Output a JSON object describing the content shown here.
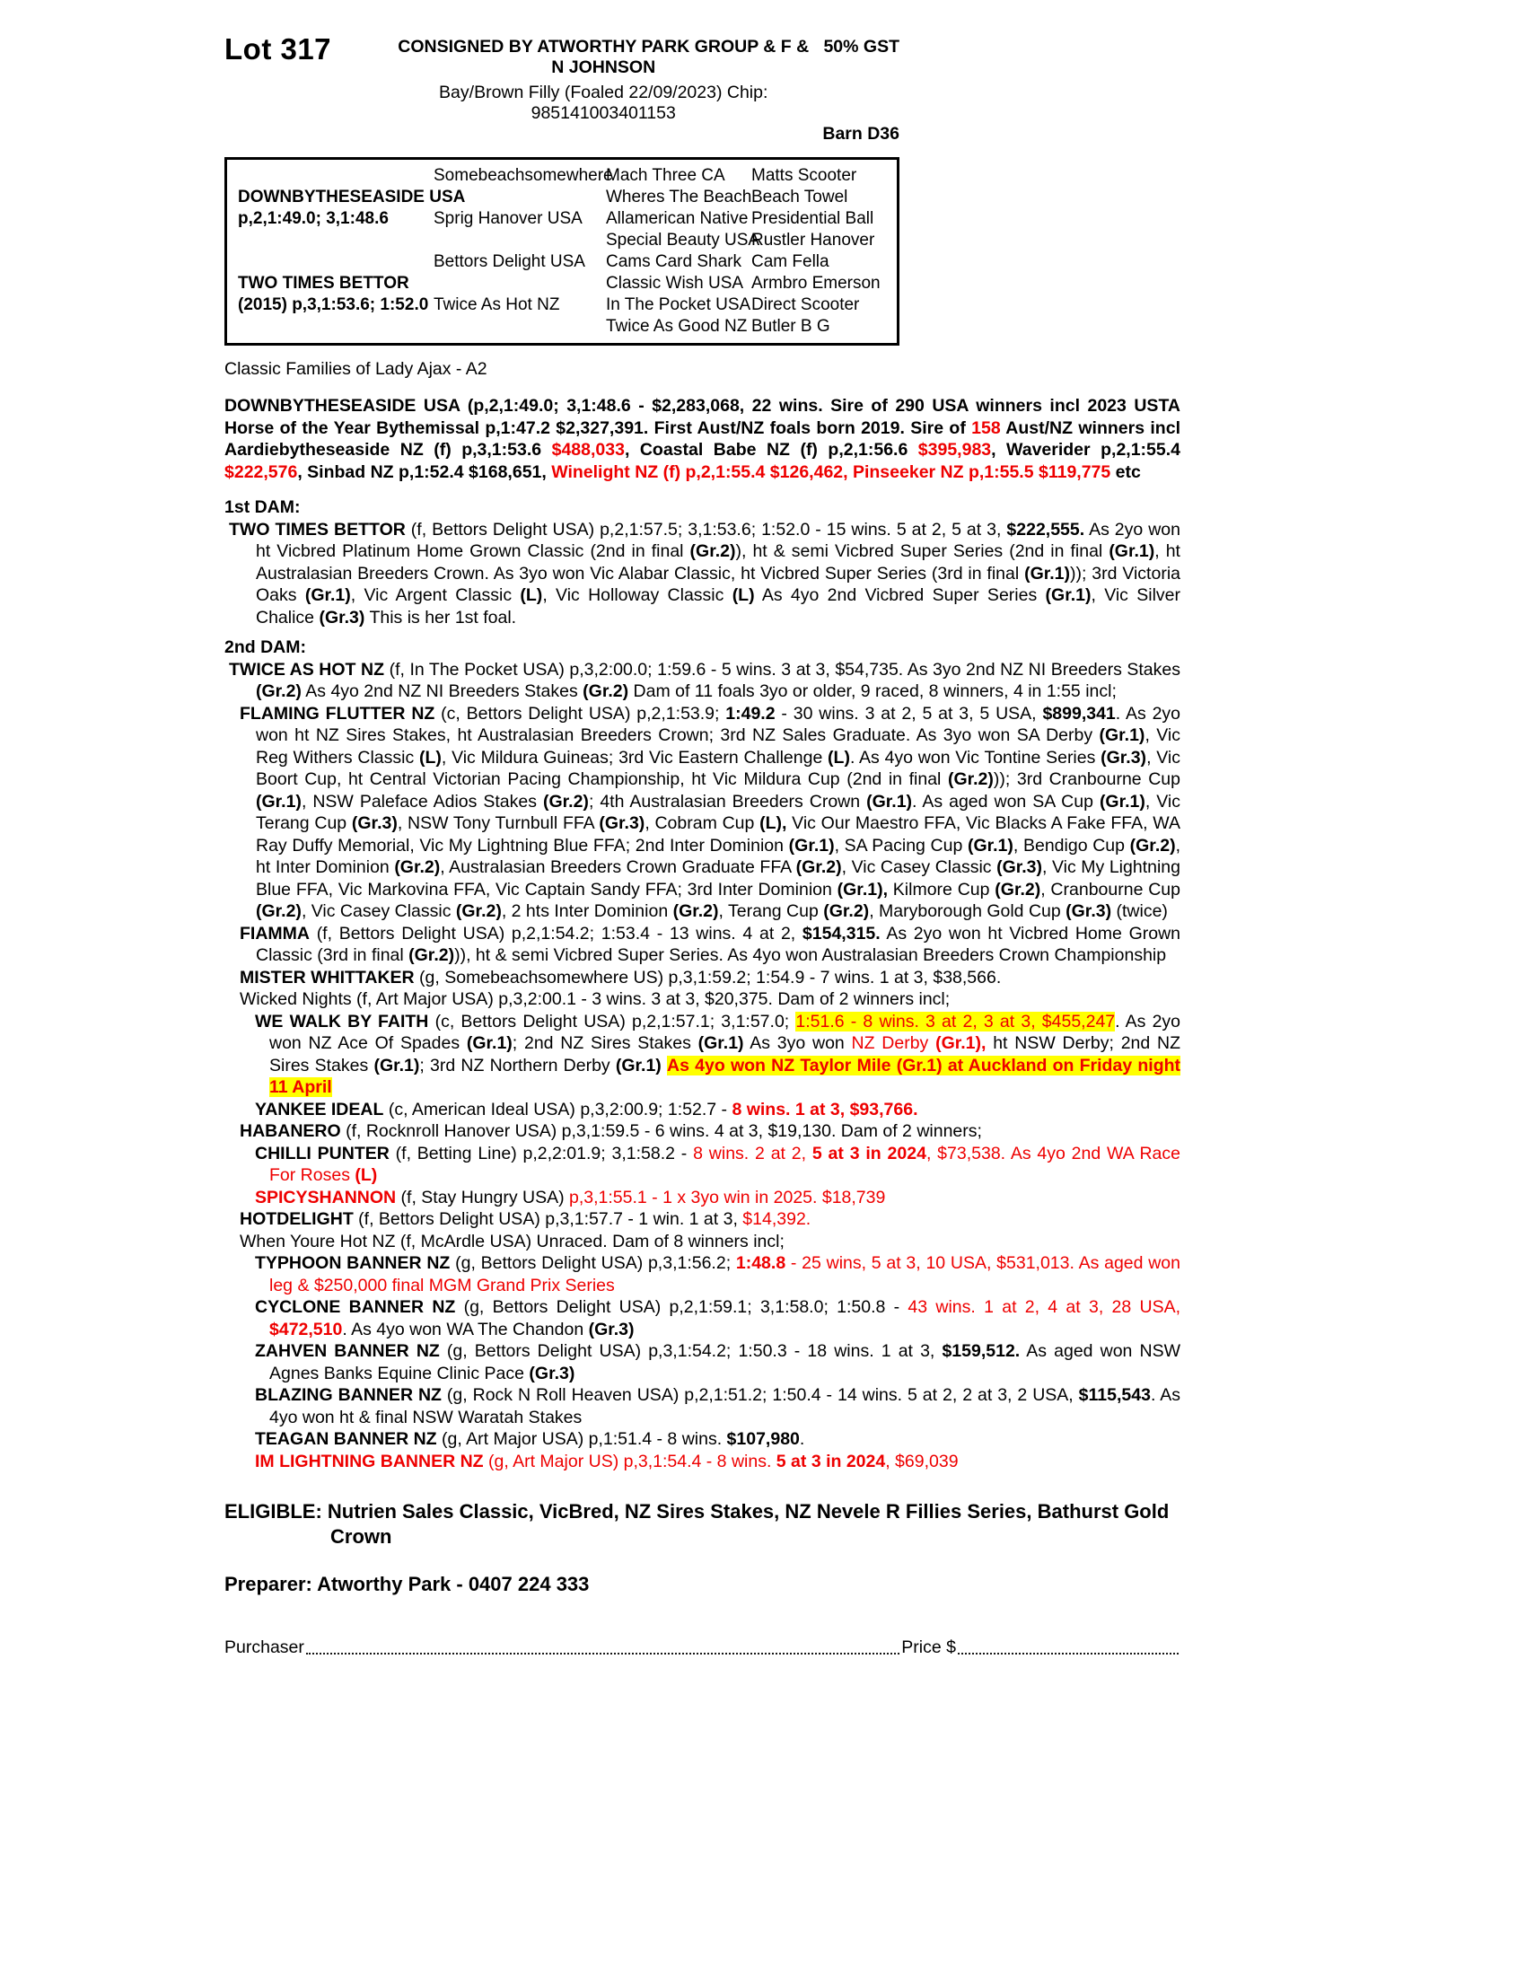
{
  "colors": {
    "red": "#ee0000",
    "highlight": "#ffff00"
  },
  "header": {
    "lot": "Lot 317",
    "consignor": "CONSIGNED BY ATWORTHY PARK GROUP & F & N JOHNSON",
    "gst": "50% GST",
    "description": "Bay/Brown Filly (Foaled 22/09/2023) Chip: 985141003401153",
    "barn": "Barn D36"
  },
  "pedigree": {
    "rows": [
      [
        "",
        "Somebeachsomewhere",
        "Mach Three CA",
        "Matts Scooter"
      ],
      [
        "DOWNBYTHESEASIDE USA",
        "",
        "Wheres The Beach",
        "Beach Towel"
      ],
      [
        "p,2,1:49.0; 3,1:48.6",
        "Sprig Hanover USA",
        "Allamerican Native",
        "Presidential Ball"
      ],
      [
        "",
        "",
        "Special Beauty USA",
        "Rustler Hanover"
      ],
      [
        "",
        "Bettors Delight USA",
        "Cams Card Shark",
        "Cam Fella"
      ],
      [
        "TWO TIMES BETTOR",
        "",
        "Classic Wish USA",
        "Armbro Emerson"
      ],
      [
        "(2015) p,3,1:53.6; 1:52.0",
        "Twice As Hot NZ",
        "In The Pocket USA",
        "Direct Scooter"
      ],
      [
        "",
        "",
        "Twice As Good NZ",
        "Butler B G"
      ]
    ]
  },
  "family_line": "Classic Families of Lady Ajax - A2",
  "sire": {
    "segments": [
      [
        "b",
        "DOWNBYTHESEASIDE USA (p,2,1:49.0; 3,1:48.6 - $2,283,068, 22 wins. Sire of 290 USA winners incl 2023 USTA Horse of the Year Bythemissal p,1:47.2 $2,327,391. First Aust/NZ foals born 2019. Sire of "
      ],
      [
        "rb",
        "158"
      ],
      [
        "b",
        " Aust/NZ winners incl Aardiebytheseaside NZ (f) p,3,1:53.6 "
      ],
      [
        "rb",
        "$488,033"
      ],
      [
        "b",
        ", Coastal Babe NZ (f) p,2,1:56.6 "
      ],
      [
        "rb",
        "$395,983"
      ],
      [
        "b",
        ", Waverider p,2,1:55.4 "
      ],
      [
        "rb",
        "$222,576"
      ],
      [
        "b",
        ", Sinbad NZ p,1:52.4 $168,651, "
      ],
      [
        "rb",
        "Winelight NZ (f) p,2,1:55.4 $126,462, Pinseeker NZ p,1:55.5 $119,775"
      ],
      [
        "b",
        " etc"
      ]
    ]
  },
  "dam1": {
    "heading": "1st DAM:",
    "record": [
      [
        "b",
        "TWO TIMES BETTOR"
      ],
      [
        "n",
        " (f, Bettors Delight USA) p,2,1:57.5; 3,1:53.6; 1:52.0 - 15 wins. 5 at 2, 5 at 3, "
      ],
      [
        "b",
        "$222,555."
      ],
      [
        "n",
        " As 2yo won ht Vicbred Platinum Home Grown Classic (2nd in final "
      ],
      [
        "b",
        "(Gr.2)"
      ],
      [
        "n",
        "), ht & semi Vicbred Super Series (2nd in final "
      ],
      [
        "b",
        "(Gr.1)"
      ],
      [
        "n",
        ", ht Australasian Breeders Crown. As 3yo won Vic Alabar Classic, ht Vicbred Super Series (3rd in final "
      ],
      [
        "b",
        "(Gr.1)"
      ],
      [
        "n",
        ")); 3rd Victoria Oaks "
      ],
      [
        "b",
        "(Gr.1)"
      ],
      [
        "n",
        ", Vic Argent Classic "
      ],
      [
        "b",
        "(L)"
      ],
      [
        "n",
        ", Vic Holloway Classic "
      ],
      [
        "b",
        "(L)"
      ],
      [
        "n",
        " As 4yo 2nd Vicbred Super Series "
      ],
      [
        "b",
        "(Gr.1)"
      ],
      [
        "n",
        ", Vic Silver Chalice "
      ],
      [
        "b",
        "(Gr.3)"
      ],
      [
        "n",
        " This is her 1st foal."
      ]
    ]
  },
  "dam2": {
    "heading": "2nd DAM:",
    "record": [
      [
        "b",
        "TWICE AS HOT NZ"
      ],
      [
        "n",
        " (f, In The Pocket USA) p,3,2:00.0; 1:59.6 - 5 wins. 3 at 3, $54,735. As 3yo 2nd NZ NI Breeders Stakes "
      ],
      [
        "b",
        "(Gr.2)"
      ],
      [
        "n",
        " As 4yo 2nd NZ NI Breeders Stakes "
      ],
      [
        "b",
        "(Gr.2)"
      ],
      [
        "n",
        " Dam of 11 foals 3yo or older, 9 raced, 8 winners, 4 in 1:55 incl;"
      ]
    ],
    "progeny": [
      {
        "segments": [
          [
            "b",
            "FLAMING FLUTTER NZ"
          ],
          [
            "n",
            " (c, Bettors Delight USA) p,2,1:53.9; "
          ],
          [
            "b",
            "1:49.2"
          ],
          [
            "n",
            " - 30 wins. 3 at 2, 5 at 3, 5 USA, "
          ],
          [
            "b",
            "$899,341"
          ],
          [
            "n",
            ". As 2yo won ht NZ Sires Stakes, ht Australasian Breeders Crown; 3rd NZ Sales Graduate. As 3yo won SA Derby "
          ],
          [
            "b",
            "(Gr.1)"
          ],
          [
            "n",
            ", Vic Reg Withers Classic "
          ],
          [
            "b",
            "(L)"
          ],
          [
            "n",
            ", Vic Mildura Guineas; 3rd Vic Eastern Challenge "
          ],
          [
            "b",
            "(L)"
          ],
          [
            "n",
            ". As 4yo won Vic Tontine Series "
          ],
          [
            "b",
            "(Gr.3)"
          ],
          [
            "n",
            ", Vic Boort Cup, ht Central Victorian Pacing Championship, ht Vic Mildura Cup (2nd in final "
          ],
          [
            "b",
            "(Gr.2)"
          ],
          [
            "n",
            ")); 3rd Cranbourne Cup "
          ],
          [
            "b",
            "(Gr.1)"
          ],
          [
            "n",
            ", NSW Paleface Adios Stakes "
          ],
          [
            "b",
            "(Gr.2)"
          ],
          [
            "n",
            "; 4th Australasian Breeders Crown "
          ],
          [
            "b",
            "(Gr.1)"
          ],
          [
            "n",
            ". As aged won SA Cup "
          ],
          [
            "b",
            "(Gr.1)"
          ],
          [
            "n",
            ", Vic Terang Cup "
          ],
          [
            "b",
            "(Gr.3)"
          ],
          [
            "n",
            ", NSW Tony Turnbull FFA "
          ],
          [
            "b",
            "(Gr.3)"
          ],
          [
            "n",
            ", Cobram Cup "
          ],
          [
            "b",
            "(L),"
          ],
          [
            "n",
            " Vic Our Maestro FFA, Vic Blacks A Fake FFA, WA Ray Duffy Memorial, Vic My Lightning Blue FFA; 2nd Inter Dominion "
          ],
          [
            "b",
            "(Gr.1)"
          ],
          [
            "n",
            ", SA Pacing Cup "
          ],
          [
            "b",
            "(Gr.1)"
          ],
          [
            "n",
            ", Bendigo Cup "
          ],
          [
            "b",
            "(Gr.2)"
          ],
          [
            "n",
            ", ht Inter Dominion "
          ],
          [
            "b",
            "(Gr.2)"
          ],
          [
            "n",
            ", Australasian Breeders Crown Graduate FFA "
          ],
          [
            "b",
            "(Gr.2)"
          ],
          [
            "n",
            ", Vic Casey Classic "
          ],
          [
            "b",
            "(Gr.3)"
          ],
          [
            "n",
            ", Vic My Lightning Blue FFA, Vic Markovina FFA, Vic Captain Sandy FFA; 3rd Inter Dominion "
          ],
          [
            "b",
            "(Gr.1),"
          ],
          [
            "n",
            " Kilmore Cup "
          ],
          [
            "b",
            "(Gr.2)"
          ],
          [
            "n",
            ", Cranbourne Cup "
          ],
          [
            "b",
            "(Gr.2)"
          ],
          [
            "n",
            ", Vic Casey Classic "
          ],
          [
            "b",
            "(Gr.2)"
          ],
          [
            "n",
            ", 2 hts Inter Dominion "
          ],
          [
            "b",
            "(Gr.2)"
          ],
          [
            "n",
            ", Terang Cup "
          ],
          [
            "b",
            "(Gr.2)"
          ],
          [
            "n",
            ", Maryborough Gold Cup "
          ],
          [
            "b",
            "(Gr.3)"
          ],
          [
            "n",
            " (twice)"
          ]
        ]
      },
      {
        "segments": [
          [
            "b",
            "FIAMMA"
          ],
          [
            "n",
            " (f, Bettors Delight USA) p,2,1:54.2; 1:53.4 - 13 wins. 4 at 2, "
          ],
          [
            "b",
            "$154,315."
          ],
          [
            "n",
            " As 2yo won ht Vicbred Home Grown Classic (3rd in final "
          ],
          [
            "b",
            "(Gr.2)"
          ],
          [
            "n",
            ")), ht & semi Vicbred Super Series. As 4yo won Australasian Breeders Crown Championship"
          ]
        ]
      },
      {
        "segments": [
          [
            "b",
            "MISTER WHITTAKER"
          ],
          [
            "n",
            " (g, Somebeachsomewhere US) p,3,1:59.2; 1:54.9 - 7 wins. 1 at 3, $38,566."
          ]
        ]
      },
      {
        "segments": [
          [
            "n",
            "Wicked Nights (f, Art Major USA) p,3,2:00.1 - 3 wins. 3 at 3, $20,375. Dam of 2 winners incl;"
          ]
        ]
      },
      {
        "segments": [
          [
            "b",
            "WE WALK BY FAITH"
          ],
          [
            "n",
            " (c, Bettors Delight USA) p,2,1:57.1; 3,1:57.0; "
          ],
          [
            "y",
            "1:51.6 - 8 wins. 3 at 2, 3 at 3, $455,247"
          ],
          [
            "n",
            ". As 2yo won NZ Ace Of Spades "
          ],
          [
            "b",
            "(Gr.1)"
          ],
          [
            "n",
            "; 2nd NZ Sires Stakes "
          ],
          [
            "b",
            "(Gr.1)"
          ],
          [
            "n",
            " As 3yo won "
          ],
          [
            "r",
            "NZ Derby "
          ],
          [
            "rb",
            "(Gr.1),"
          ],
          [
            "n",
            " ht NSW Derby; 2nd NZ Sires Stakes "
          ],
          [
            "b",
            "(Gr.1)"
          ],
          [
            "n",
            "; 3rd NZ Northern Derby "
          ],
          [
            "b",
            "(Gr.1)"
          ],
          [
            "n",
            " "
          ],
          [
            "yb",
            "As 4yo won NZ Taylor Mile (Gr.1) at Auckland on Friday night 11 April"
          ]
        ]
      },
      {
        "segments": [
          [
            "b",
            "YANKEE IDEAL"
          ],
          [
            "n",
            " (c, American Ideal USA) p,3,2:00.9; 1:52.7 - "
          ],
          [
            "rb",
            "8 wins. 1 at 3, $93,766."
          ]
        ]
      },
      {
        "segments": [
          [
            "b",
            "HABANERO"
          ],
          [
            "n",
            " (f, Rocknroll Hanover USA) p,3,1:59.5 - 6 wins. 4 at 3, $19,130. Dam of 2 winners;"
          ]
        ]
      },
      {
        "segments": [
          [
            "b",
            "CHILLI PUNTER"
          ],
          [
            "n",
            " (f, Betting Line) p,2,2:01.9; 3,1:58.2 - "
          ],
          [
            "r",
            "8 wins. 2 at 2, "
          ],
          [
            "rb",
            "5 at 3 in 2024"
          ],
          [
            "r",
            ", $73,538. As 4yo 2nd WA Race For Roses "
          ],
          [
            "rb",
            "(L)"
          ]
        ]
      },
      {
        "segments": [
          [
            "rb",
            "SPICYSHANNON"
          ],
          [
            "n",
            " (f, Stay Hungry USA) "
          ],
          [
            "r",
            "p,3,1:55.1 - 1 x 3yo win in 2025. $18,739"
          ]
        ]
      },
      {
        "segments": [
          [
            "b",
            "HOTDELIGHT"
          ],
          [
            "n",
            " (f, Bettors Delight USA) p,3,1:57.7 - 1 win. 1 at 3, "
          ],
          [
            "r",
            "$14,392."
          ]
        ]
      },
      {
        "segments": [
          [
            "n",
            "When Youre Hot NZ (f, McArdle USA) Unraced. Dam of 8 winners incl;"
          ]
        ]
      },
      {
        "segments": [
          [
            "b",
            "TYPHOON BANNER NZ"
          ],
          [
            "n",
            " (g, Bettors Delight USA) p,3,1:56.2; "
          ],
          [
            "rb",
            "1:48.8"
          ],
          [
            "r",
            " - 25 wins, 5 at 3, 10 USA, $531,013. As aged won leg & $250,000 final MGM Grand Prix Series"
          ]
        ]
      },
      {
        "segments": [
          [
            "b",
            "CYCLONE BANNER NZ"
          ],
          [
            "n",
            " (g, Bettors Delight USA) p,2,1:59.1; 3,1:58.0; 1:50.8 - "
          ],
          [
            "r",
            "43 wins. 1 at 2, 4 at 3, 28 USA, "
          ],
          [
            "rb",
            "$472,510"
          ],
          [
            "n",
            ". As 4yo won WA The Chandon "
          ],
          [
            "b",
            "(Gr.3)"
          ]
        ]
      },
      {
        "segments": [
          [
            "b",
            "ZAHVEN BANNER NZ"
          ],
          [
            "n",
            " (g, Bettors Delight USA) p,3,1:54.2; 1:50.3 - 18 wins. 1 at 3, "
          ],
          [
            "b",
            "$159,512."
          ],
          [
            "n",
            " As aged won NSW Agnes Banks Equine Clinic Pace "
          ],
          [
            "b",
            "(Gr.3)"
          ]
        ]
      },
      {
        "segments": [
          [
            "b",
            "BLAZING BANNER NZ"
          ],
          [
            "n",
            " (g, Rock N Roll Heaven USA) p,2,1:51.2; 1:50.4 - 14 wins. 5 at 2, 2 at 3, 2 USA, "
          ],
          [
            "b",
            "$115,543"
          ],
          [
            "n",
            ". As 4yo won ht & final NSW Waratah Stakes"
          ]
        ]
      },
      {
        "segments": [
          [
            "b",
            "TEAGAN BANNER NZ"
          ],
          [
            "n",
            " (g, Art Major USA) p,1:51.4 - 8 wins. "
          ],
          [
            "b",
            "$107,980"
          ],
          [
            "n",
            "."
          ]
        ]
      },
      {
        "segments": [
          [
            "rb",
            "IM LIGHTNING BANNER NZ"
          ],
          [
            "r",
            " (g, Art Major US) p,3,1:54.4 - 8 wins. "
          ],
          [
            "rb",
            "5 at 3 in 2024"
          ],
          [
            "r",
            ", $69,039"
          ]
        ]
      }
    ]
  },
  "footer": {
    "eligible": "ELIGIBLE: Nutrien Sales Classic, VicBred, NZ Sires Stakes, NZ Nevele R Fillies Series, Bathurst Gold Crown",
    "preparer": "Preparer: Atworthy Park - 0407 224 333",
    "purchaser_label": "Purchaser",
    "price_label": "Price $"
  }
}
